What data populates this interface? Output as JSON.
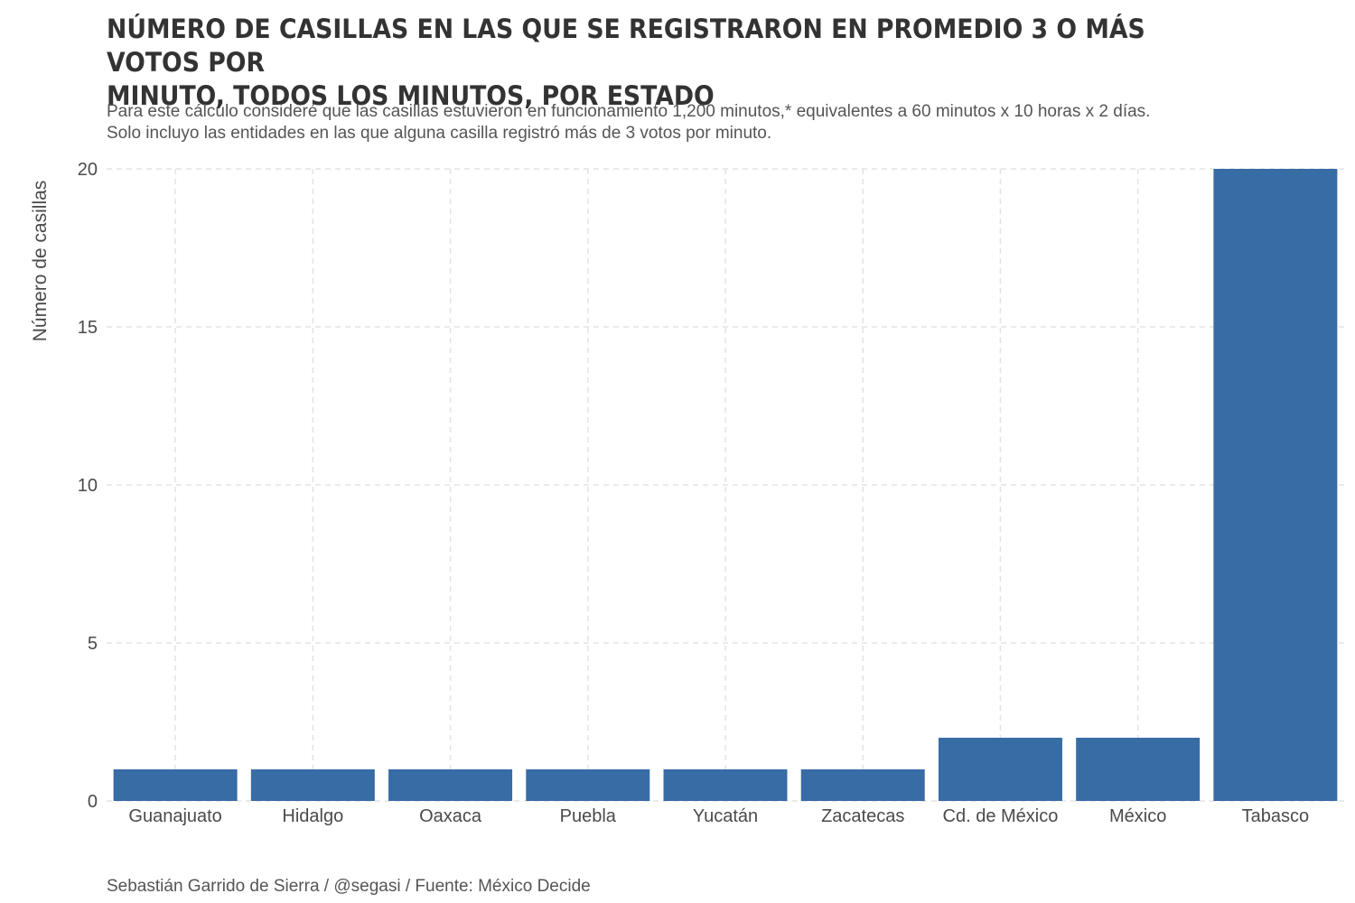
{
  "chart_data": {
    "type": "bar",
    "title_line1": "NÚMERO DE CASILLAS EN LAS QUE SE REGISTRARON EN PROMEDIO 3 O MÁS VOTOS POR",
    "title_line2": "MINUTO, TODOS LOS MINUTOS, POR ESTADO",
    "subtitle_line1": "Para este cálculo consideré que las casillas estuvieron en funcionamiento 1,200 minutos,* equivalentes a 60 minutos x 10 horas x 2 días.",
    "subtitle_line2": "Solo incluyo las entidades en las que alguna casilla registró más de 3 votos por minuto.",
    "caption": "Sebastián Garrido de Sierra / @segasi / Fuente: México Decide",
    "xlabel": "",
    "ylabel": "Número de casillas",
    "categories": [
      "Guanajuato",
      "Hidalgo",
      "Oaxaca",
      "Puebla",
      "Yucatán",
      "Zacatecas",
      "Cd. de México",
      "México",
      "Tabasco"
    ],
    "values": [
      1,
      1,
      1,
      1,
      1,
      1,
      2,
      2,
      20
    ],
    "ylim": [
      0,
      20
    ],
    "yticks": [
      0,
      5,
      10,
      15,
      20
    ],
    "grid": true,
    "legend": "none",
    "bar_color": "#386ca5",
    "grid_color": "#e3e3e3"
  }
}
